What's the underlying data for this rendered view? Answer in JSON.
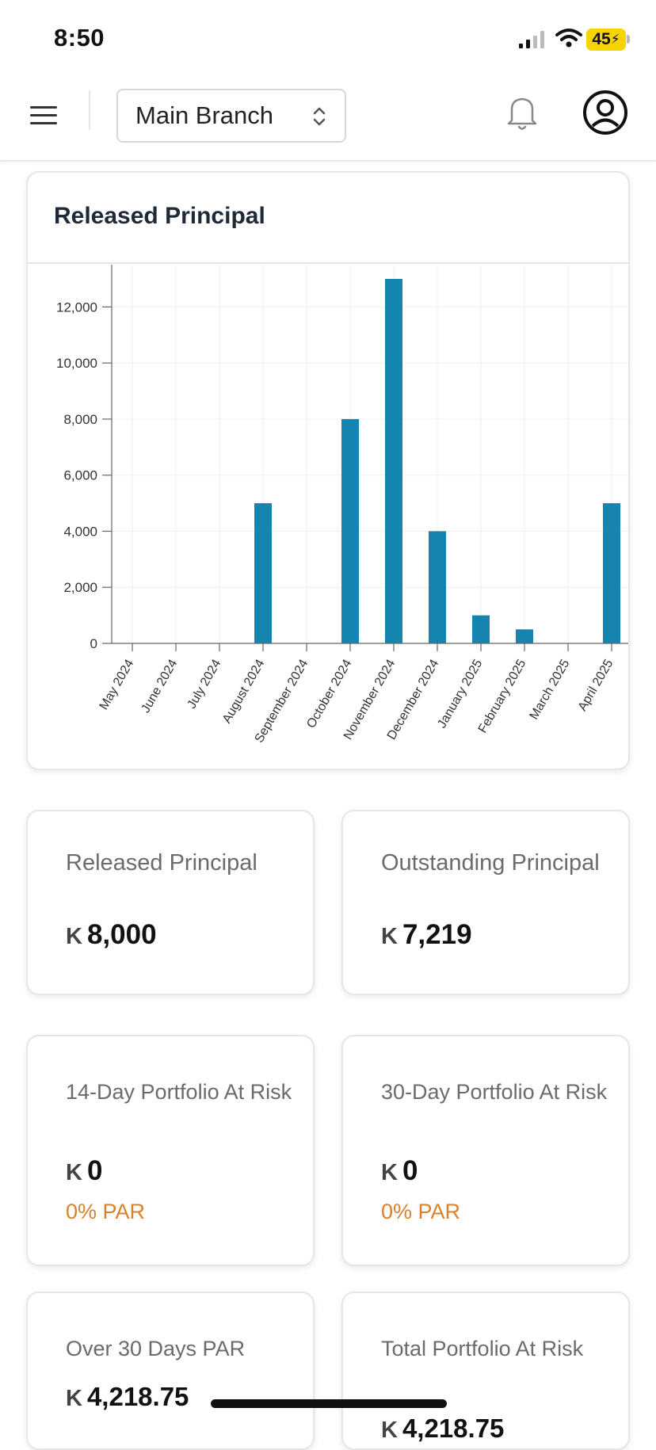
{
  "status_bar": {
    "time": "8:50",
    "battery": "45"
  },
  "top_bar": {
    "branch_selector": "Main Branch"
  },
  "chart_card": {
    "title": "Released Principal"
  },
  "chart_data": {
    "type": "bar",
    "title": "Released Principal",
    "xlabel": "",
    "ylabel": "",
    "ylim": [
      0,
      13000
    ],
    "yticks": [
      0,
      2000,
      4000,
      6000,
      8000,
      10000,
      12000
    ],
    "ytick_labels": [
      "0",
      "2,000",
      "4,000",
      "6,000",
      "8,000",
      "10,000",
      "12,000"
    ],
    "categories": [
      "May 2024",
      "June 2024",
      "July 2024",
      "August 2024",
      "September 2024",
      "October 2024",
      "November 2024",
      "December 2024",
      "January 2025",
      "February 2025",
      "March 2025",
      "April 2025"
    ],
    "values": [
      0,
      0,
      0,
      5000,
      0,
      8000,
      13000,
      4000,
      1000,
      500,
      0,
      5000
    ],
    "bar_color": "#1585b0",
    "grid": true
  },
  "metrics": [
    {
      "label": "Released Principal",
      "currency": "K",
      "value": "8,000"
    },
    {
      "label": "Outstanding Principal",
      "currency": "K",
      "value": "7,219"
    },
    {
      "label": "14-Day Portfolio At Risk",
      "currency": "K",
      "value": "0",
      "par": "0% PAR"
    },
    {
      "label": "30-Day Portfolio At Risk",
      "currency": "K",
      "value": "0",
      "par": "0% PAR"
    },
    {
      "label": "Over 30 Days PAR",
      "currency": "K",
      "value": "4,218.75"
    },
    {
      "label": "Total Portfolio At Risk",
      "currency": "K",
      "value": "4,218.75"
    }
  ],
  "colors": {
    "accent": "#1585b0",
    "par_text": "#d9822b"
  }
}
